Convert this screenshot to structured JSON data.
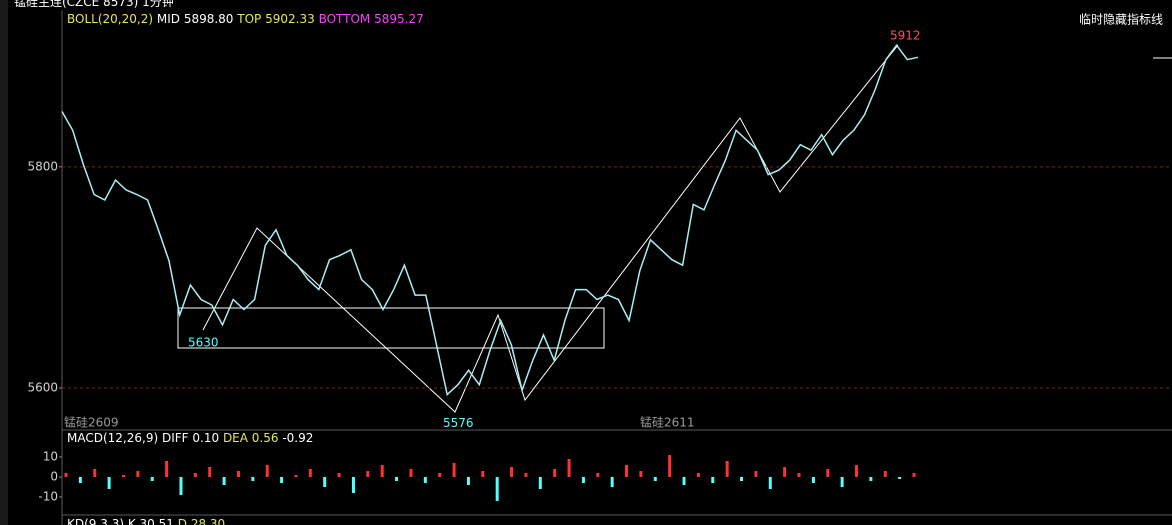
{
  "header": {
    "symbol": "锰硅主连(CZCE 8573)",
    "period": "1分钟",
    "hide_button": "临时隐藏指标线"
  },
  "chart_data": [
    {
      "type": "line",
      "indicator": "BOLL(20,20,2)",
      "indicator_color": "#e8e84f",
      "readouts": [
        {
          "label": "MID",
          "text": "5898.80",
          "color": "#ffffff"
        },
        {
          "label": "TOP",
          "text": "5902.33",
          "color": "#e8e84f"
        },
        {
          "label": "BOTTOM",
          "text": "5895.27",
          "color": "#ff3cff"
        }
      ],
      "values": [
        5850,
        5833,
        5802,
        5775,
        5770,
        5788,
        5779,
        5775,
        5770,
        5743,
        5715,
        5666,
        5693,
        5680,
        5675,
        5657,
        5680,
        5671,
        5680,
        5729,
        5743,
        5720,
        5711,
        5698,
        5689,
        5716,
        5720,
        5725,
        5698,
        5689,
        5671,
        5689,
        5711,
        5684,
        5684,
        5639,
        5594,
        5603,
        5616,
        5603,
        5634,
        5661,
        5639,
        5598,
        5625,
        5648,
        5625,
        5661,
        5689,
        5689,
        5680,
        5684,
        5680,
        5661,
        5706,
        5734,
        5725,
        5716,
        5711,
        5766,
        5761,
        5784,
        5806,
        5833,
        5824,
        5815,
        5793,
        5797,
        5806,
        5820,
        5815,
        5829,
        5811,
        5824,
        5833,
        5847,
        5870,
        5897,
        5910,
        5897,
        5899
      ],
      "color": "#a8eef5",
      "ylim": [
        5562,
        5940
      ],
      "yticks": [
        5600,
        5800
      ],
      "grid": true,
      "annotations": [
        5912,
        5630,
        5576
      ],
      "contract_labels": [
        "锰硅2609",
        "锰硅2611"
      ]
    },
    {
      "type": "bar",
      "indicator": "MACD(12,26,9)",
      "indicator_color": "#ffffff",
      "readouts": [
        {
          "label": "DIFF",
          "text": "0.10",
          "color": "#ffffff"
        },
        {
          "label": "DEA",
          "text": "0.56",
          "color": "#e8e84f"
        }
      ],
      "macd_text": "-0.92",
      "values": [
        2,
        -3,
        4,
        -6,
        1,
        3,
        -2,
        8,
        -9,
        2,
        5,
        -4,
        3,
        -2,
        6,
        -3,
        1,
        4,
        -5,
        2,
        -8,
        3,
        6,
        -2,
        4,
        -3,
        2,
        7,
        -4,
        3,
        -12,
        5,
        2,
        -6,
        4,
        9,
        -3,
        2,
        -5,
        6,
        3,
        -2,
        11,
        -4,
        2,
        -3,
        8,
        -2,
        3,
        -6,
        5,
        2,
        -3,
        4,
        -5,
        6,
        -2,
        3,
        -1,
        2
      ],
      "up_color": "#ff3232",
      "down_color": "#54ffff",
      "ylim": [
        -19,
        22.5
      ],
      "yticks": [
        10,
        0,
        -10
      ]
    }
  ],
  "kd": {
    "indicator": "KD(9,3,3)",
    "readouts": [
      {
        "label": "K",
        "text": "30.51",
        "color": "#ffffff"
      },
      {
        "label": "D",
        "text": "28.30",
        "color": "#e8e84f"
      }
    ]
  }
}
